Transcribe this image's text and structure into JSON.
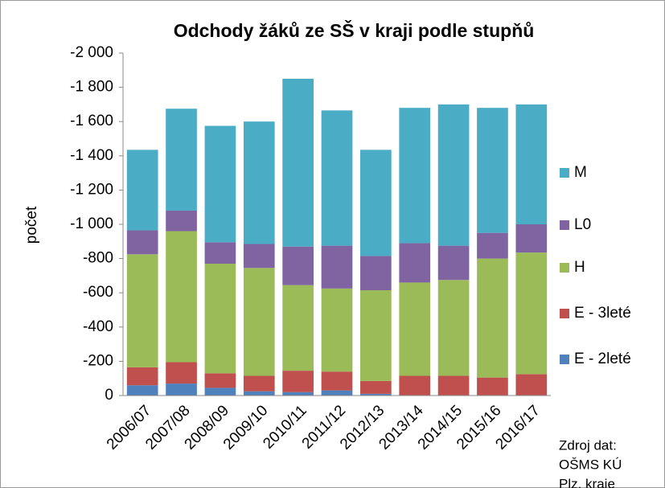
{
  "chart_data": {
    "type": "stacked-bar",
    "title": "Odchody žáků ze SŠ v kraji podle stupňů",
    "y_label": "počet",
    "categories": [
      "2006/07",
      "2007/08",
      "2008/09",
      "2009/10",
      "2010/11",
      "2011/12",
      "2012/13",
      "2013/14",
      "2014/15",
      "2015/16",
      "2016/17"
    ],
    "series": [
      {
        "name": "E - 2leté",
        "color": "#4f81bd",
        "values": [
          -60,
          -70,
          -45,
          -25,
          -20,
          -30,
          -10,
          0,
          0,
          0,
          0
        ]
      },
      {
        "name": "E - 3leté",
        "color": "#c0504d",
        "values": [
          -105,
          -125,
          -85,
          -90,
          -125,
          -110,
          -75,
          -115,
          -115,
          -105,
          -125
        ]
      },
      {
        "name": "H",
        "color": "#9bbb59",
        "values": [
          -660,
          -765,
          -640,
          -630,
          -500,
          -485,
          -530,
          -545,
          -560,
          -695,
          -710
        ]
      },
      {
        "name": "L0",
        "color": "#8064a2",
        "values": [
          -140,
          -120,
          -125,
          -140,
          -225,
          -250,
          -200,
          -230,
          -200,
          -150,
          -165
        ]
      },
      {
        "name": "M",
        "color": "#4bacc6",
        "values": [
          -470,
          -595,
          -680,
          -715,
          -980,
          -790,
          -620,
          -790,
          -825,
          -730,
          -700
        ]
      }
    ],
    "ylim": [
      0,
      -2000
    ],
    "yticks": [
      0,
      -200,
      -400,
      -600,
      -800,
      {
        "value": -1000,
        "label": "-1 000"
      },
      {
        "value": -1200,
        "label": "-1 200"
      },
      {
        "value": -1400,
        "label": "-1 400"
      },
      {
        "value": -1600,
        "label": "-1 600"
      },
      {
        "value": -1800,
        "label": "-1 800"
      },
      {
        "value": -2000,
        "label": "-2 000"
      }
    ],
    "legend": "right",
    "source": [
      "Zdroj dat:",
      "OŠMS KÚ",
      "Plz. kraje"
    ]
  }
}
